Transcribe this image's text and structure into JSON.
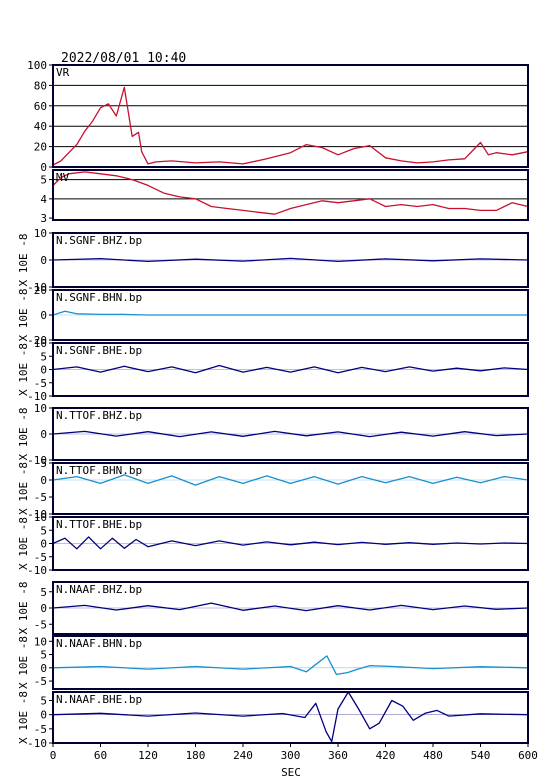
{
  "header": {
    "datetime": "2022/08/01  10:40"
  },
  "colors": {
    "red": "#c8102e",
    "navy": "#000080",
    "sky": "#1a8fd0",
    "frame": "#000033"
  },
  "chart_data": {
    "type": "line",
    "xlabel": "SEC",
    "xlim": [
      0,
      600
    ],
    "xticks": [
      0,
      60,
      120,
      180,
      240,
      300,
      360,
      420,
      480,
      540,
      600
    ],
    "panels": [
      {
        "label": "VR",
        "color": "red",
        "ylim": [
          0,
          100
        ],
        "yticks": [
          0,
          20,
          40,
          60,
          80,
          100
        ],
        "gridlines": [
          20,
          40,
          60,
          80
        ],
        "x": [
          0,
          10,
          20,
          30,
          40,
          50,
          60,
          70,
          80,
          90,
          100,
          108,
          112,
          120,
          130,
          150,
          180,
          210,
          240,
          270,
          300,
          320,
          340,
          360,
          380,
          400,
          420,
          440,
          460,
          480,
          500,
          520,
          540,
          550,
          560,
          580,
          600
        ],
        "values": [
          2,
          6,
          14,
          22,
          35,
          45,
          58,
          62,
          50,
          78,
          30,
          34,
          15,
          3,
          5,
          6,
          4,
          5,
          3,
          8,
          14,
          22,
          19,
          12,
          18,
          21,
          9,
          6,
          4,
          5,
          7,
          8,
          24,
          12,
          14,
          12,
          15
        ]
      },
      {
        "label": "MV",
        "color": "red",
        "ylim": [
          2.9,
          5.5
        ],
        "yticks": [
          3,
          4,
          5
        ],
        "gridlines": [
          4,
          5
        ],
        "x": [
          0,
          10,
          20,
          40,
          60,
          80,
          100,
          120,
          140,
          160,
          180,
          200,
          220,
          240,
          260,
          280,
          300,
          320,
          340,
          360,
          380,
          400,
          420,
          440,
          460,
          480,
          500,
          520,
          540,
          560,
          580,
          600
        ],
        "values": [
          4.7,
          5.1,
          5.3,
          5.4,
          5.3,
          5.2,
          5.0,
          4.7,
          4.3,
          4.1,
          4.0,
          3.6,
          3.5,
          3.4,
          3.3,
          3.2,
          3.5,
          3.7,
          3.9,
          3.8,
          3.9,
          4.0,
          3.6,
          3.7,
          3.6,
          3.7,
          3.5,
          3.5,
          3.4,
          3.4,
          3.8,
          3.6
        ]
      },
      {
        "label": "N.SGNF.BHZ.bp",
        "color": "navy",
        "ylim": [
          -10,
          10
        ],
        "yticks": [
          -10,
          0,
          10
        ],
        "yaxis_label": "X 10E -8",
        "x": [
          0,
          60,
          120,
          180,
          240,
          300,
          360,
          420,
          480,
          540,
          600
        ],
        "values": [
          0,
          0.5,
          -0.5,
          0.3,
          -0.4,
          0.6,
          -0.5,
          0.4,
          -0.3,
          0.4,
          0
        ]
      },
      {
        "label": "N.SGNF.BHN.bp",
        "color": "sky",
        "ylim": [
          -20,
          20
        ],
        "yticks": [
          -20,
          0,
          20
        ],
        "yaxis_label": "X 10E -8",
        "x": [
          0,
          15,
          30,
          60,
          90,
          120,
          600
        ],
        "values": [
          0,
          3,
          1,
          0.5,
          0.5,
          0,
          0
        ]
      },
      {
        "label": "N.SGNF.BHE.bp",
        "color": "navy",
        "ylim": [
          -10,
          10
        ],
        "yticks": [
          -10,
          -5,
          0,
          5,
          10
        ],
        "yaxis_label": "X 10E -8",
        "x": [
          0,
          30,
          60,
          90,
          120,
          150,
          180,
          210,
          240,
          270,
          300,
          330,
          360,
          390,
          420,
          450,
          480,
          510,
          540,
          570,
          600
        ],
        "values": [
          0,
          1,
          -1,
          1.2,
          -0.8,
          1,
          -1.2,
          1.5,
          -1,
          0.8,
          -1,
          1,
          -1.2,
          0.8,
          -0.8,
          1,
          -0.6,
          0.5,
          -0.5,
          0.6,
          0
        ]
      },
      {
        "label": "N.TTOF.BHZ.bp",
        "color": "navy",
        "ylim": [
          -10,
          10
        ],
        "yticks": [
          -10,
          0,
          10
        ],
        "yaxis_label": "X 10E -8",
        "x": [
          0,
          40,
          80,
          120,
          160,
          200,
          240,
          280,
          320,
          360,
          400,
          440,
          480,
          520,
          560,
          600
        ],
        "values": [
          0,
          1,
          -0.8,
          0.9,
          -1,
          0.8,
          -0.9,
          1,
          -0.7,
          0.8,
          -1,
          0.7,
          -0.8,
          0.9,
          -0.6,
          0
        ]
      },
      {
        "label": "N.TTOF.BHN.bp",
        "color": "sky",
        "ylim": [
          -10,
          5
        ],
        "yticks": [
          -10,
          -5,
          0,
          5
        ],
        "yaxis_label": "X 10E -8",
        "x": [
          0,
          30,
          60,
          90,
          120,
          150,
          180,
          210,
          240,
          270,
          300,
          330,
          360,
          390,
          420,
          450,
          480,
          510,
          540,
          570,
          600
        ],
        "values": [
          0,
          1,
          -1,
          1.5,
          -1,
          1.2,
          -1.5,
          1,
          -1,
          1.2,
          -1,
          1,
          -1.2,
          1,
          -0.8,
          1,
          -1,
          0.8,
          -0.8,
          1,
          0
        ]
      },
      {
        "label": "N.TTOF.BHE.bp",
        "color": "navy",
        "ylim": [
          -10,
          10
        ],
        "yticks": [
          -10,
          -5,
          0,
          5,
          10
        ],
        "yaxis_label": "X 10E -8",
        "x": [
          0,
          15,
          30,
          45,
          60,
          75,
          90,
          105,
          120,
          150,
          180,
          210,
          240,
          270,
          300,
          330,
          360,
          390,
          420,
          450,
          480,
          510,
          540,
          570,
          600
        ],
        "values": [
          0,
          2,
          -2,
          2.5,
          -2,
          2,
          -1.8,
          1.5,
          -1.2,
          1,
          -0.8,
          1,
          -0.6,
          0.6,
          -0.5,
          0.5,
          -0.4,
          0.4,
          -0.3,
          0.3,
          -0.3,
          0.2,
          -0.2,
          0.2,
          0
        ]
      },
      {
        "label": "N.NAAF.BHZ.bp",
        "color": "navy",
        "ylim": [
          -8,
          8
        ],
        "yticks": [
          -5,
          0,
          5
        ],
        "yaxis_label": "X 10E -8",
        "x": [
          0,
          40,
          80,
          120,
          160,
          200,
          240,
          280,
          320,
          360,
          400,
          440,
          480,
          520,
          560,
          600
        ],
        "values": [
          0,
          0.8,
          -0.6,
          0.7,
          -0.5,
          1.5,
          -0.7,
          0.6,
          -0.8,
          0.7,
          -0.6,
          0.8,
          -0.5,
          0.6,
          -0.4,
          0
        ]
      },
      {
        "label": "N.NAAF.BHN.bp",
        "color": "sky",
        "ylim": [
          -8,
          12
        ],
        "yticks": [
          -5,
          0,
          5,
          10
        ],
        "yaxis_label": "X 10E -8",
        "x": [
          0,
          60,
          120,
          180,
          240,
          300,
          320,
          333,
          346,
          358,
          372,
          385,
          400,
          430,
          480,
          540,
          600
        ],
        "values": [
          0,
          0.5,
          -0.5,
          0.5,
          -0.5,
          0.5,
          -1.5,
          1.5,
          4.5,
          -2.5,
          -1.8,
          -0.5,
          0.8,
          0.5,
          -0.3,
          0.4,
          0
        ]
      },
      {
        "label": "N.NAAF.BHE.bp",
        "color": "navy",
        "ylim": [
          -10,
          8
        ],
        "yticks": [
          -10,
          -5,
          0,
          5
        ],
        "yaxis_label": "X 10E -8",
        "x": [
          0,
          60,
          120,
          180,
          240,
          290,
          318,
          332,
          345,
          352,
          360,
          373,
          386,
          400,
          412,
          428,
          442,
          455,
          470,
          485,
          500,
          540,
          600
        ],
        "values": [
          0,
          0.5,
          -0.5,
          0.6,
          -0.5,
          0.4,
          -1,
          4,
          -6,
          -9.5,
          2,
          8,
          2,
          -5,
          -3,
          5,
          3,
          -2,
          0.5,
          1.5,
          -0.5,
          0.3,
          0
        ]
      }
    ]
  }
}
